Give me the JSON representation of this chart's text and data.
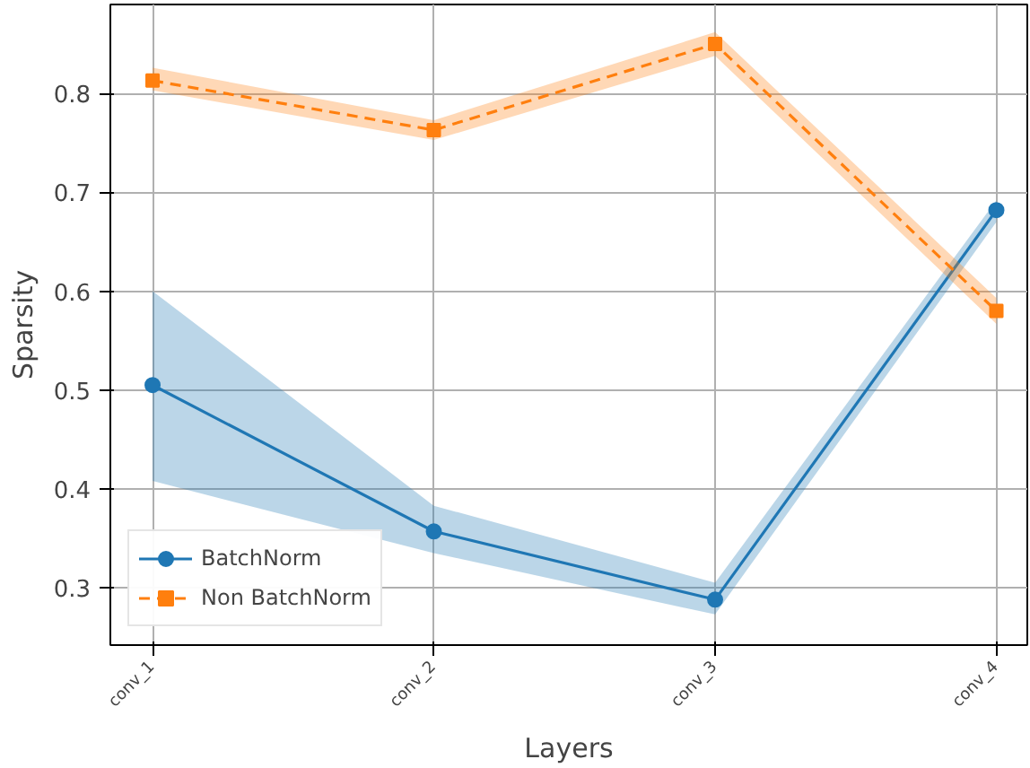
{
  "chart_data": {
    "type": "line",
    "xlabel": "Layers",
    "ylabel": "Sparsity",
    "categories": [
      "conv_1",
      "conv_2",
      "conv_3",
      "conv_4"
    ],
    "series": [
      {
        "name": "BatchNorm",
        "color": "#1f77b4",
        "values": [
          0.505,
          0.357,
          0.288,
          0.682
        ],
        "lower": [
          0.408,
          0.335,
          0.273,
          0.67
        ],
        "upper": [
          0.6,
          0.383,
          0.305,
          0.692
        ],
        "marker": "circle",
        "line_style": "solid"
      },
      {
        "name": "Non BatchNorm",
        "color": "#ff7f0e",
        "values": [
          0.813,
          0.763,
          0.85,
          0.58
        ],
        "lower": [
          0.803,
          0.753,
          0.838,
          0.567
        ],
        "upper": [
          0.826,
          0.773,
          0.862,
          0.593
        ],
        "marker": "square",
        "line_style": "dashed"
      }
    ],
    "ylim": [
      0.242,
      0.89
    ],
    "yticks": [
      0.3,
      0.4,
      0.5,
      0.6,
      0.7,
      0.8
    ],
    "grid": true,
    "legend": "bottom left"
  }
}
